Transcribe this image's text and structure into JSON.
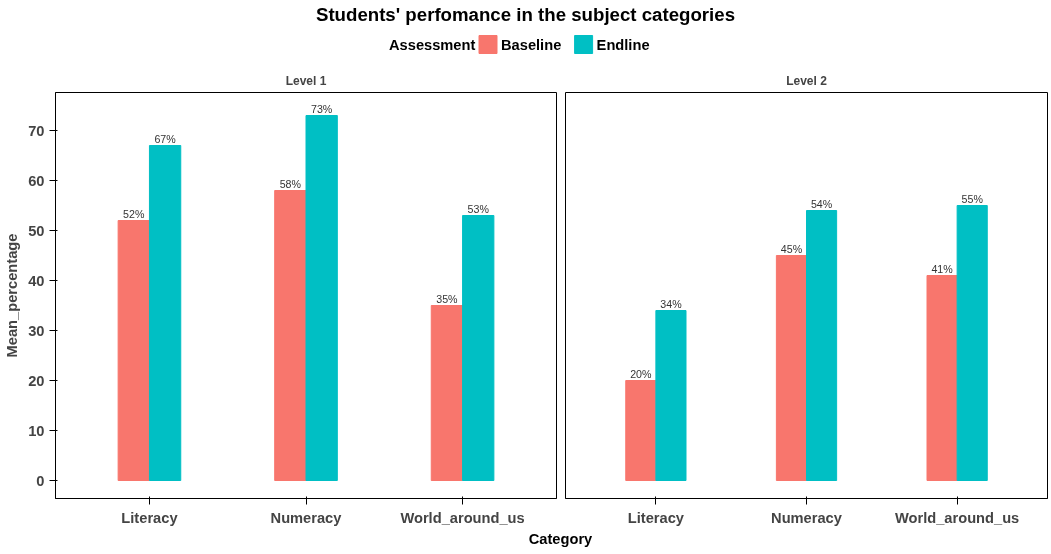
{
  "chart_data": [
    {
      "type": "bar",
      "title": "Students' perfomance in the subject categories",
      "subtitle": "Level 1",
      "xlabel": "Category",
      "ylabel": "Mean_percentage",
      "legend_title": "Assessment",
      "legend": "top",
      "categories": [
        "Literacy",
        "Numeracy",
        "World_around_us"
      ],
      "series": [
        {
          "name": "Baseline",
          "color": "#f8766d",
          "values": [
            52,
            58,
            35
          ],
          "value_labels": [
            "52%",
            "58%",
            "35%"
          ]
        },
        {
          "name": "Endline",
          "color": "#00bfc4",
          "values": [
            67,
            73,
            53
          ],
          "value_labels": [
            "67%",
            "73%",
            "53%"
          ]
        }
      ],
      "ylim": [
        -3.6,
        77.6
      ],
      "yticks": [
        0,
        10,
        20,
        30,
        40,
        50,
        60,
        70
      ]
    },
    {
      "type": "bar",
      "subtitle": "Level 2",
      "tick_labels": "x",
      "categories": [
        "Literacy",
        "Numeracy",
        "World_around_us"
      ],
      "series": [
        {
          "color": "#f8766d",
          "values": [
            20,
            45,
            41
          ],
          "value_labels": [
            "20%",
            "45%",
            "41%"
          ]
        },
        {
          "color": "#00bfc4",
          "values": [
            34,
            54,
            55
          ],
          "value_labels": [
            "34%",
            "54%",
            "55%"
          ]
        }
      ],
      "ylim": [
        -3.6,
        77.6
      ],
      "yticks": [
        0,
        10,
        20,
        30,
        40,
        50,
        60,
        70
      ]
    }
  ]
}
